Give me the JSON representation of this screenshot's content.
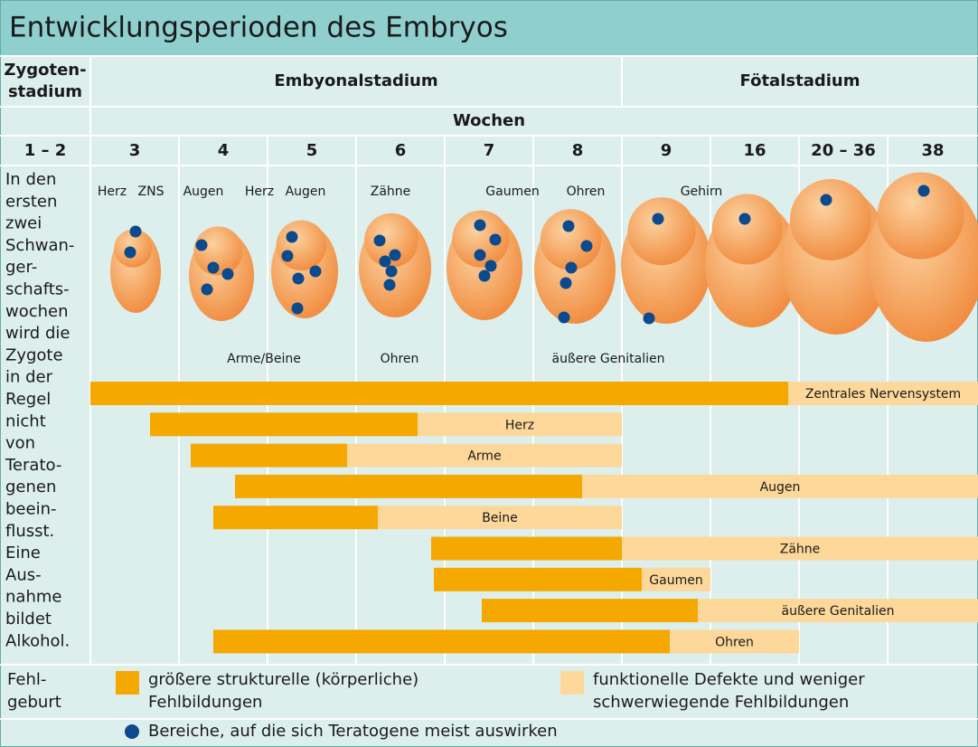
{
  "title": "Entwicklungsperioden des Embryos",
  "stages": {
    "zygote": [
      "Zygoten-",
      "stadium"
    ],
    "embryonic": "Embyonalstadium",
    "fetal": "Fötalstadium"
  },
  "weeks_label": "Wochen",
  "weeks": [
    "1 – 2",
    "3",
    "4",
    "5",
    "6",
    "7",
    "8",
    "9",
    "16",
    "20 – 36",
    "38"
  ],
  "note_lines": [
    "In den",
    "ersten",
    "zwei",
    "Schwan-",
    "ger-",
    "schafts-",
    "wochen",
    "wird die",
    "Zygote",
    "in der",
    "Regel",
    "nicht",
    "von",
    "Terato-",
    "genen",
    "beein-",
    "flusst.",
    "Eine",
    "Aus-",
    "nahme",
    "bildet",
    "Alkohol."
  ],
  "embryo_labels": [
    "Herz",
    "ZNS",
    "Augen",
    "Herz",
    "Augen",
    "Zähne",
    "Gaumen",
    "Ohren",
    "Gehirn",
    "Arme/Beine",
    "Ohren",
    "äußere Genitalien"
  ],
  "bars": [
    {
      "label": "Zentrales Nervensystem"
    },
    {
      "label": "Herz"
    },
    {
      "label": "Arme"
    },
    {
      "label": "Augen"
    },
    {
      "label": "Beine"
    },
    {
      "label": "Zähne"
    },
    {
      "label": "Gaumen"
    },
    {
      "label": "äußere Genitalien"
    },
    {
      "label": "Ohren"
    }
  ],
  "legend": {
    "miscarriage": [
      "Fehl-",
      "geburt"
    ],
    "major": [
      "größere strukturelle (körperliche)",
      "Fehlbildungen"
    ],
    "minor": [
      "funktionelle Defekte und weniger",
      "schwerwiegende Fehlbildungen"
    ],
    "dots": "Bereiche, auf die sich Teratogene meist auswirken"
  }
}
